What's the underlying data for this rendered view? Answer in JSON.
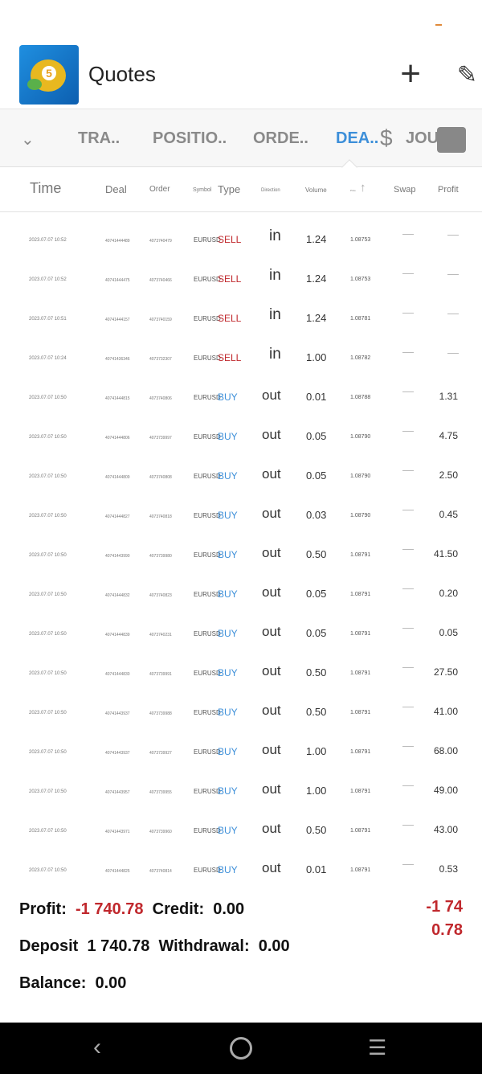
{
  "app": {
    "title": "Quotes",
    "add_icon": "plus-icon",
    "edit_icon": "pencil-icon"
  },
  "tabs": [
    {
      "label": "TRA.."
    },
    {
      "label": "POSITIO.."
    },
    {
      "label": "ORDE.."
    },
    {
      "label": "DEA..",
      "active": true
    },
    {
      "label": "JOU"
    }
  ],
  "columns": {
    "time": "Time",
    "deal": "Deal",
    "order": "Order",
    "symbol": "Symbol",
    "type": "Type",
    "direction": "Direction",
    "volume": "Volume",
    "price": "Price",
    "swap": "Swap",
    "profit": "Profit"
  },
  "colors": {
    "sell": "#c0282d",
    "buy": "#3d8fd9",
    "active_tab": "#3d8fd9"
  },
  "deals": [
    {
      "time": "2023.07.07 10:52",
      "deal": "40741444489",
      "order": "4073740479",
      "symbol": "EURUSD",
      "type": "SELL",
      "direction": "in",
      "volume": "1.24",
      "price": "1.08753",
      "profit": ""
    },
    {
      "time": "2023.07.07 10:52",
      "deal": "40741444475",
      "order": "4073740466",
      "symbol": "EURUSD",
      "type": "SELL",
      "direction": "in",
      "volume": "1.24",
      "price": "1.08753",
      "profit": ""
    },
    {
      "time": "2023.07.07 10:51",
      "deal": "40741444157",
      "order": "4073740159",
      "symbol": "EURUSD",
      "type": "SELL",
      "direction": "in",
      "volume": "1.24",
      "price": "1.08781",
      "profit": ""
    },
    {
      "time": "2023.07.07 10:24",
      "deal": "40741436346",
      "order": "4073732307",
      "symbol": "EURUSD",
      "type": "SELL",
      "direction": "in",
      "volume": "1.00",
      "price": "1.08782",
      "profit": ""
    },
    {
      "time": "2023.07.07 10:50",
      "deal": "40741444815",
      "order": "4073740806",
      "symbol": "EURUSD",
      "type": "BUY",
      "direction": "out",
      "volume": "0.01",
      "price": "1.08788",
      "profit": "1.31"
    },
    {
      "time": "2023.07.07 10:50",
      "deal": "40741444806",
      "order": "4073739997",
      "symbol": "EURUSD",
      "type": "BUY",
      "direction": "out",
      "volume": "0.05",
      "price": "1.08790",
      "profit": "4.75"
    },
    {
      "time": "2023.07.07 10:50",
      "deal": "40741444809",
      "order": "4073740808",
      "symbol": "EURUSD",
      "type": "BUY",
      "direction": "out",
      "volume": "0.05",
      "price": "1.08790",
      "profit": "2.50"
    },
    {
      "time": "2023.07.07 10:50",
      "deal": "40741444827",
      "order": "4073740818",
      "symbol": "EURUSD",
      "type": "BUY",
      "direction": "out",
      "volume": "0.03",
      "price": "1.08790",
      "profit": "0.45"
    },
    {
      "time": "2023.07.07 10:50",
      "deal": "40741443990",
      "order": "4073739980",
      "symbol": "EURUSD",
      "type": "BUY",
      "direction": "out",
      "volume": "0.50",
      "price": "1.08791",
      "profit": "41.50"
    },
    {
      "time": "2023.07.07 10:50",
      "deal": "40741444832",
      "order": "4073740823",
      "symbol": "EURUSD",
      "type": "BUY",
      "direction": "out",
      "volume": "0.05",
      "price": "1.08791",
      "profit": "0.20"
    },
    {
      "time": "2023.07.07 10:50",
      "deal": "40741444839",
      "order": "4073740231",
      "symbol": "EURUSD",
      "type": "BUY",
      "direction": "out",
      "volume": "0.05",
      "price": "1.08791",
      "profit": "0.05"
    },
    {
      "time": "2023.07.07 10:50",
      "deal": "40741444830",
      "order": "4073739991",
      "symbol": "EURUSD",
      "type": "BUY",
      "direction": "out",
      "volume": "0.50",
      "price": "1.08791",
      "profit": "27.50"
    },
    {
      "time": "2023.07.07 10:50",
      "deal": "40741443937",
      "order": "4073739988",
      "symbol": "EURUSD",
      "type": "BUY",
      "direction": "out",
      "volume": "0.50",
      "price": "1.08791",
      "profit": "41.00"
    },
    {
      "time": "2023.07.07 10:50",
      "deal": "40741443937",
      "order": "4073739927",
      "symbol": "EURUSD",
      "type": "BUY",
      "direction": "out",
      "volume": "1.00",
      "price": "1.08791",
      "profit": "68.00"
    },
    {
      "time": "2023.07.07 10:50",
      "deal": "40741443957",
      "order": "4073739955",
      "symbol": "EURUSD",
      "type": "BUY",
      "direction": "out",
      "volume": "1.00",
      "price": "1.08791",
      "profit": "49.00"
    },
    {
      "time": "2023.07.07 10:50",
      "deal": "40741443971",
      "order": "4073739960",
      "symbol": "EURUSD",
      "type": "BUY",
      "direction": "out",
      "volume": "0.50",
      "price": "1.08791",
      "profit": "43.00"
    },
    {
      "time": "2023.07.07 10:50",
      "deal": "40741444825",
      "order": "4073740814",
      "symbol": "EURUSD",
      "type": "BUY",
      "direction": "out",
      "volume": "0.01",
      "price": "1.08791",
      "profit": "0.53"
    }
  ],
  "summary": {
    "profit_label": "Profit:",
    "profit": "-1 740.78",
    "credit_label": "Credit:",
    "credit": "0.00",
    "deposit_label": "Deposit",
    "deposit": "1 740.78",
    "withdrawal_label": "Withdrawal:",
    "withdrawal": "0.00",
    "balance_label": "Balance:",
    "balance": "0.00",
    "total_line1": "-1 74",
    "total_line2": "0.78"
  }
}
